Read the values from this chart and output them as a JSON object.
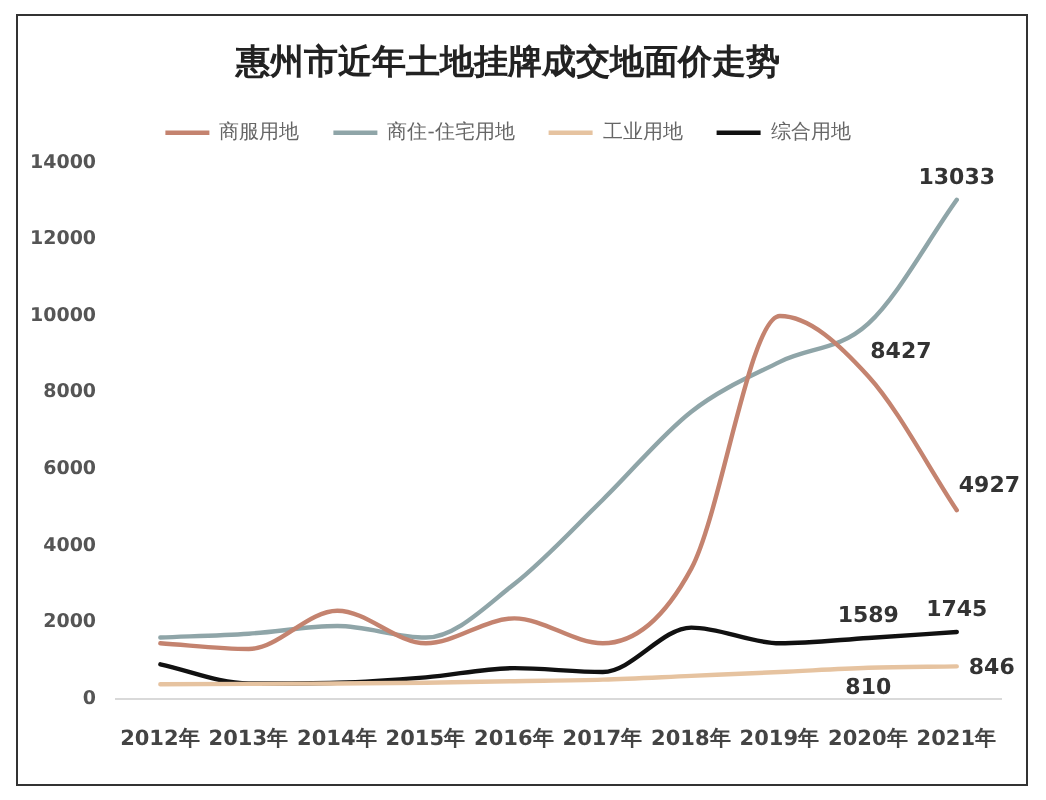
{
  "chart_data": {
    "type": "line",
    "title": "惠州市近年土地挂牌成交地面价走势",
    "categories": [
      "2012年",
      "2013年",
      "2014年",
      "2015年",
      "2016年",
      "2017年",
      "2018年",
      "2019年",
      "2020年",
      "2021年"
    ],
    "series": [
      {
        "name": "商服用地",
        "color": "#c4836f",
        "values": [
          1450,
          1300,
          2300,
          1450,
          2100,
          1450,
          3400,
          10000,
          8427,
          4927
        ],
        "value_labels": [
          null,
          null,
          null,
          null,
          null,
          null,
          null,
          null,
          "8427",
          "4927"
        ]
      },
      {
        "name": "商住-住宅用地",
        "color": "#8fa5a8",
        "values": [
          1600,
          1700,
          1900,
          1600,
          3000,
          5200,
          7500,
          8800,
          9800,
          13033
        ],
        "value_labels": [
          null,
          null,
          null,
          null,
          null,
          null,
          null,
          null,
          null,
          "13033"
        ]
      },
      {
        "name": "工业用地",
        "color": "#e6c3a0",
        "values": [
          380,
          390,
          400,
          420,
          460,
          500,
          600,
          700,
          810,
          846
        ],
        "value_labels": [
          null,
          null,
          null,
          null,
          null,
          null,
          null,
          null,
          "810",
          "846"
        ]
      },
      {
        "name": "综合用地",
        "color": "#111111",
        "values": [
          900,
          400,
          420,
          560,
          800,
          700,
          1860,
          1450,
          1589,
          1745
        ],
        "value_labels": [
          null,
          null,
          null,
          null,
          null,
          null,
          null,
          null,
          "1589",
          "1745"
        ]
      }
    ],
    "ylim": [
      0,
      14000
    ],
    "yticks": [
      0,
      2000,
      4000,
      6000,
      8000,
      10000,
      12000,
      14000
    ],
    "grid": false,
    "legend": "top"
  }
}
